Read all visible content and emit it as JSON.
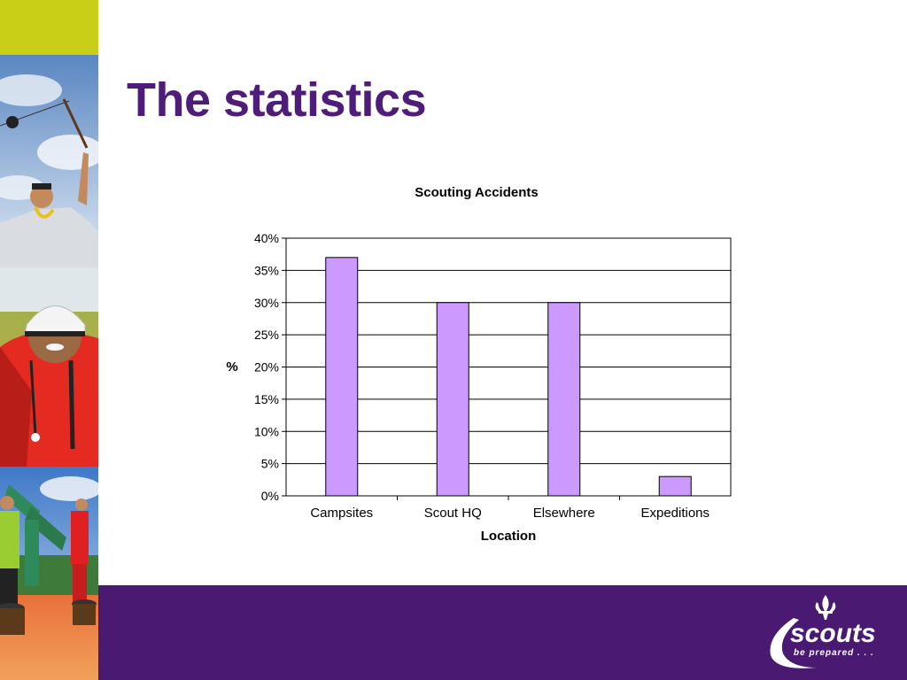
{
  "slide": {
    "title": "The statistics"
  },
  "logo": {
    "wordmark": "scouts",
    "tagline": "be prepared . . ."
  },
  "colors": {
    "brand_purple": "#4a1a73",
    "title_purple": "#4e1d7a",
    "accent_lime": "#c9cf16",
    "bar_fill": "#cc99ff"
  },
  "chart_data": {
    "type": "bar",
    "title": "Scouting Accidents",
    "xlabel": "Location",
    "ylabel": "%",
    "categories": [
      "Campsites",
      "Scout HQ",
      "Elsewhere",
      "Expeditions"
    ],
    "values": [
      37,
      30,
      30,
      3
    ],
    "ylim": [
      0,
      40
    ],
    "yticks": [
      "0%",
      "5%",
      "10%",
      "15%",
      "20%",
      "25%",
      "30%",
      "35%",
      "40%"
    ],
    "grid": true,
    "legend": "none"
  }
}
